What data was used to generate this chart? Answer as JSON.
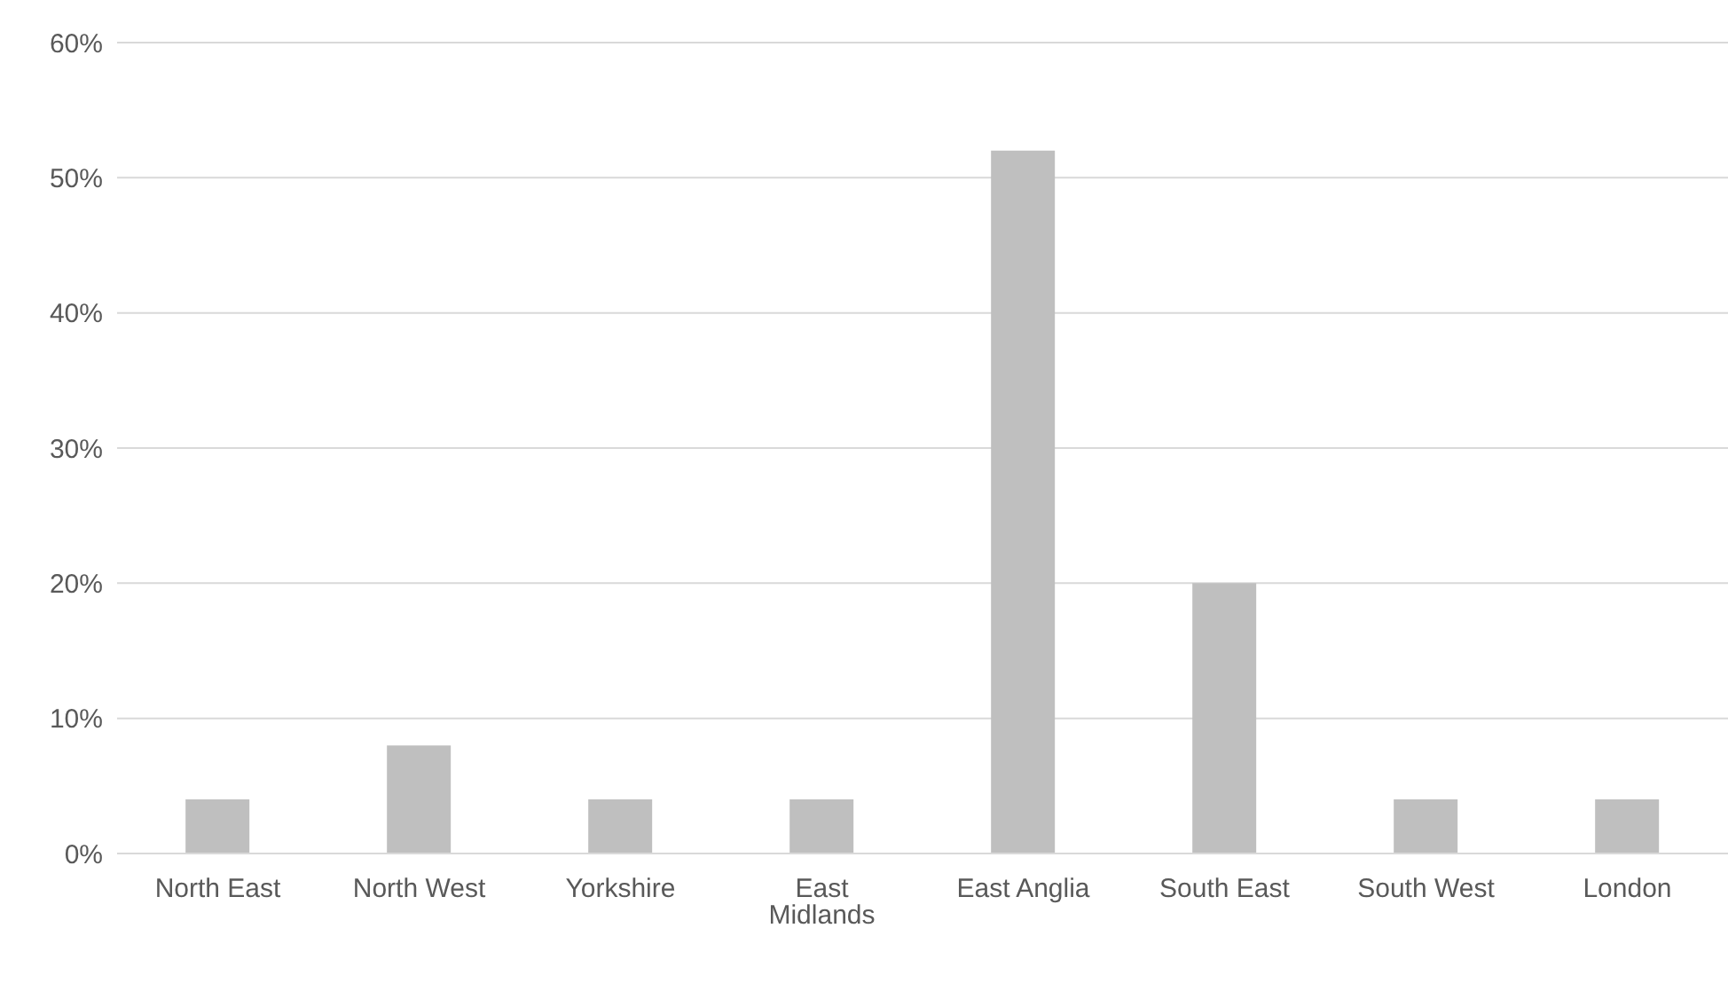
{
  "chart_data": {
    "type": "bar",
    "categories": [
      "North East",
      "North West",
      "Yorkshire",
      "East Midlands",
      "East Anglia",
      "South East",
      "South West",
      "London"
    ],
    "values": [
      4,
      8,
      4,
      4,
      52,
      20,
      4,
      4
    ],
    "color": "#bfbfbf",
    "ylim": [
      0,
      60
    ],
    "yticks": [
      {
        "value": 0,
        "label": "0%"
      },
      {
        "value": 10,
        "label": "10%"
      },
      {
        "value": 20,
        "label": "20%"
      },
      {
        "value": 30,
        "label": "30%"
      },
      {
        "value": 40,
        "label": "40%"
      },
      {
        "value": 50,
        "label": "50%"
      },
      {
        "value": 60,
        "label": "60%"
      }
    ],
    "grid": "y",
    "legend": false
  }
}
